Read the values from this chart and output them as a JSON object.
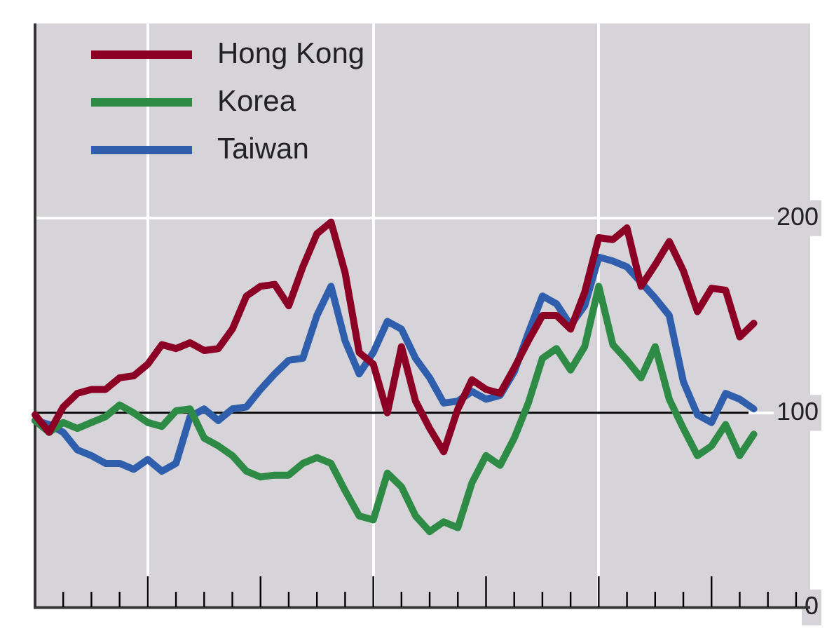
{
  "chart_data": {
    "type": "line",
    "categories": [
      null,
      null,
      null,
      null,
      null,
      null,
      null,
      null,
      null,
      null,
      null,
      null,
      null,
      null,
      null,
      null,
      null,
      null,
      null,
      null,
      null,
      null,
      null,
      null,
      null,
      null,
      null,
      null,
      null,
      null,
      null,
      null,
      null,
      null,
      null,
      null,
      null,
      null,
      null,
      null,
      null,
      null,
      null,
      null,
      null,
      null,
      null,
      null,
      null,
      null,
      null,
      null,
      null,
      null,
      null,
      null
    ],
    "ylim": [
      0,
      300
    ],
    "yticks": [
      0,
      100,
      200
    ],
    "grid": true,
    "legend": "top left",
    "marker": "none",
    "line_style": "solid",
    "ref_lines": [
      {
        "axis": "y",
        "value": 100,
        "color": "#000000"
      }
    ],
    "series": [
      {
        "name": "Hong Kong",
        "color": "#8b0024",
        "values": [
          99,
          90,
          103,
          110,
          112,
          112,
          118,
          119,
          125,
          135,
          133,
          136,
          132,
          133,
          143,
          160,
          165,
          166,
          155,
          175,
          192,
          198,
          172,
          131,
          125,
          100,
          134,
          106,
          92,
          80,
          102,
          117,
          112,
          110,
          123,
          137,
          150,
          150,
          143,
          162,
          190,
          189,
          195,
          165,
          176,
          188,
          173,
          152,
          164,
          163,
          139,
          146,
          null,
          null,
          null,
          null
        ]
      },
      {
        "name": "Korea",
        "color": "#2e8b45",
        "values": [
          96,
          90,
          95,
          92,
          95,
          98,
          104,
          100,
          95,
          93,
          101,
          102,
          87,
          83,
          78,
          70,
          67,
          68,
          68,
          74,
          77,
          74,
          60,
          47,
          45,
          69,
          62,
          47,
          39,
          44,
          41,
          64,
          78,
          73,
          87,
          105,
          128,
          133,
          122,
          134,
          165,
          135,
          127,
          118,
          134,
          107,
          92,
          78,
          83,
          94,
          78,
          89,
          null,
          null,
          null,
          null
        ]
      },
      {
        "name": "Taiwan",
        "color": "#2f5fac",
        "values": [
          96,
          94,
          90,
          81,
          78,
          74,
          74,
          71,
          76,
          70,
          74,
          98,
          102,
          96,
          102,
          103,
          112,
          120,
          127,
          128,
          150,
          165,
          137,
          120,
          131,
          147,
          143,
          128,
          118,
          105,
          106,
          111,
          107,
          109,
          121,
          141,
          160,
          156,
          145,
          155,
          180,
          178,
          175,
          167,
          159,
          150,
          116,
          99,
          95,
          110,
          107,
          102,
          null,
          null,
          null,
          null
        ]
      }
    ]
  }
}
